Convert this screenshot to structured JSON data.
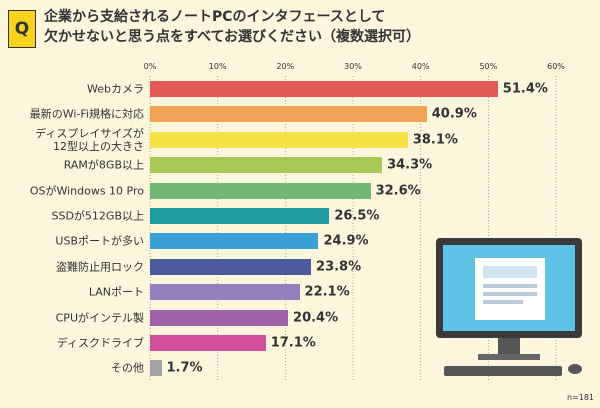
{
  "chart_data": {
    "type": "bar",
    "orientation": "horizontal",
    "badge": "Q",
    "title": "企業から支給されるノートPCのインタフェースとして\n欠かせないと思う点をすべてお選びください（複数選択可）",
    "categories": [
      "Webカメラ",
      "最新のWi-Fi規格に対応",
      "ディスプレイサイズが\n12型以上の大きさ",
      "RAMが8GB以上",
      "OSがWindows 10 Pro",
      "SSDが512GB以上",
      "USBポートが多い",
      "盗難防止用ロック",
      "LANポート",
      "CPUがインテル製",
      "ディスクドライブ",
      "その他"
    ],
    "values": [
      51.4,
      40.9,
      38.1,
      34.3,
      32.6,
      26.5,
      24.9,
      23.8,
      22.1,
      20.4,
      17.1,
      1.7
    ],
    "value_labels": [
      "51.4%",
      "40.9%",
      "38.1%",
      "34.3%",
      "32.6%",
      "26.5%",
      "24.9%",
      "23.8%",
      "22.1%",
      "20.4%",
      "17.1%",
      "1.7%"
    ],
    "colors": [
      "#e25a58",
      "#f0a356",
      "#f6e245",
      "#a9c955",
      "#72b774",
      "#1f9b9e",
      "#3aa1d6",
      "#4b5b9c",
      "#9281bd",
      "#a062a6",
      "#d14f9b",
      "#a3a3a3"
    ],
    "xlim": [
      0,
      60
    ],
    "xticks": [
      {
        "value": 0,
        "label": "0%"
      },
      {
        "value": 10,
        "label": "10%"
      },
      {
        "value": 20,
        "label": "20%"
      },
      {
        "value": 30,
        "label": "30%"
      },
      {
        "value": 40,
        "label": "40%"
      },
      {
        "value": 50,
        "label": "50%"
      },
      {
        "value": 60,
        "label": "60%"
      }
    ],
    "grid": true,
    "note": "n=181"
  }
}
